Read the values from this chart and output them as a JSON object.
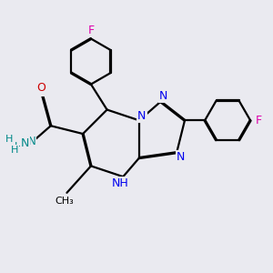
{
  "bg_color": "#eaeaf0",
  "atom_colors": {
    "C": "#000000",
    "N": "#0000ee",
    "O": "#cc0000",
    "F": "#dd00aa",
    "H": "#008888"
  },
  "bond_color": "#000000",
  "bond_width": 1.6,
  "dbl_sep": 0.018
}
